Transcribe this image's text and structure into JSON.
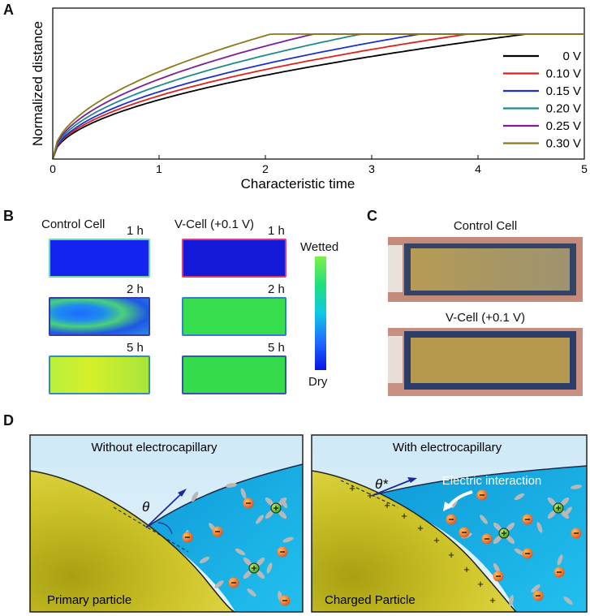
{
  "panels": {
    "a": "A",
    "b": "B",
    "c": "C",
    "d": "D"
  },
  "chart_data": {
    "type": "line",
    "xlabel": "Characteristic time",
    "ylabel": "Normalized distance",
    "xlim": [
      0,
      5
    ],
    "xticks": [
      "0",
      "1",
      "2",
      "3",
      "4",
      "5"
    ],
    "legend_position": "right",
    "plateau": 1.0,
    "series": [
      {
        "name": "0 V",
        "color": "#000000",
        "saturation_time": 4.45
      },
      {
        "name": "0.10 V",
        "color": "#e0201e",
        "saturation_time": 3.9
      },
      {
        "name": "0.15 V",
        "color": "#1e2fd0",
        "saturation_time": 3.45
      },
      {
        "name": "0.20 V",
        "color": "#1f8a8a",
        "saturation_time": 2.9
      },
      {
        "name": "0.25 V",
        "color": "#7a1e9a",
        "saturation_time": 2.45
      },
      {
        "name": "0.30 V",
        "color": "#8a7a1a",
        "saturation_time": 2.05
      }
    ]
  },
  "panel_b": {
    "control_title": "Control Cell",
    "vcell_title": "V-Cell (+0.1 V)",
    "times": [
      "1 h",
      "2 h",
      "5 h"
    ],
    "colorbar_top": "Wetted",
    "colorbar_bottom": "Dry",
    "colors": {
      "dry": "#0814e6",
      "wet": "#28e04a"
    }
  },
  "panel_c": {
    "control_title": "Control Cell",
    "vcell_title": "V-Cell (+0.1 V)"
  },
  "panel_d": {
    "left_title": "Without electrocapillary",
    "right_title": "With electrocapillary",
    "left_angle": "θ",
    "right_angle": "θ*",
    "interaction_label": "Electric interaction",
    "left_particle": "Primary particle",
    "right_particle": "Charged Particle"
  }
}
